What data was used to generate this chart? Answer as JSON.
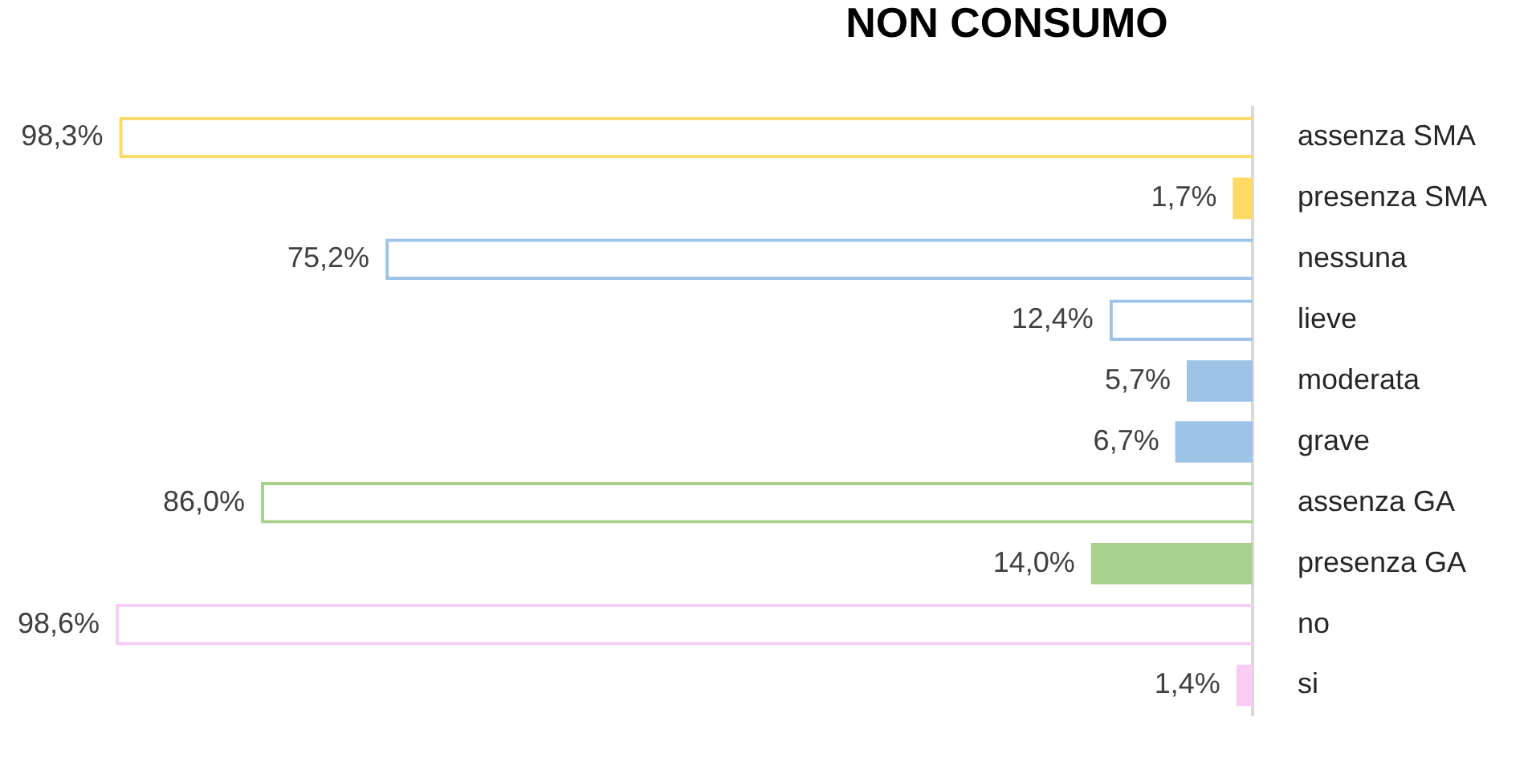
{
  "chart_data": {
    "type": "bar",
    "orientation": "horizontal",
    "title": "NON CONSUMO",
    "categories": [
      "assenza SMA",
      "presenza SMA",
      "nessuna",
      "lieve",
      "moderata",
      "grave",
      "assenza GA",
      "presenza GA",
      "no",
      "si"
    ],
    "series": [
      {
        "colors": [
          "#ffd966",
          null,
          "#9dc3e6",
          "#9dc3e6",
          null,
          null,
          "#a9d18e",
          null,
          "#f9ccf5",
          null
        ],
        "values": [
          98.3,
          null,
          75.2,
          12.4,
          null,
          null,
          86.0,
          null,
          98.6,
          null
        ],
        "value_labels": [
          "98,3%",
          null,
          "75,2%",
          "12,4%",
          null,
          null,
          "86,0%",
          null,
          "98,6%",
          null
        ]
      },
      {
        "colors": [
          null,
          "#ffd966",
          null,
          null,
          "#9dc3e6",
          "#9dc3e6",
          null,
          "#a9d18e",
          null,
          "#f9ccf5"
        ],
        "values": [
          null,
          1.7,
          null,
          null,
          5.7,
          6.7,
          null,
          14.0,
          null,
          1.4
        ],
        "value_labels": [
          null,
          "1,7%",
          null,
          null,
          "5,7%",
          "6,7%",
          null,
          "14,0%",
          null,
          "1,4%"
        ]
      }
    ],
    "tick_labels": "y",
    "grid": false,
    "legend": false
  }
}
